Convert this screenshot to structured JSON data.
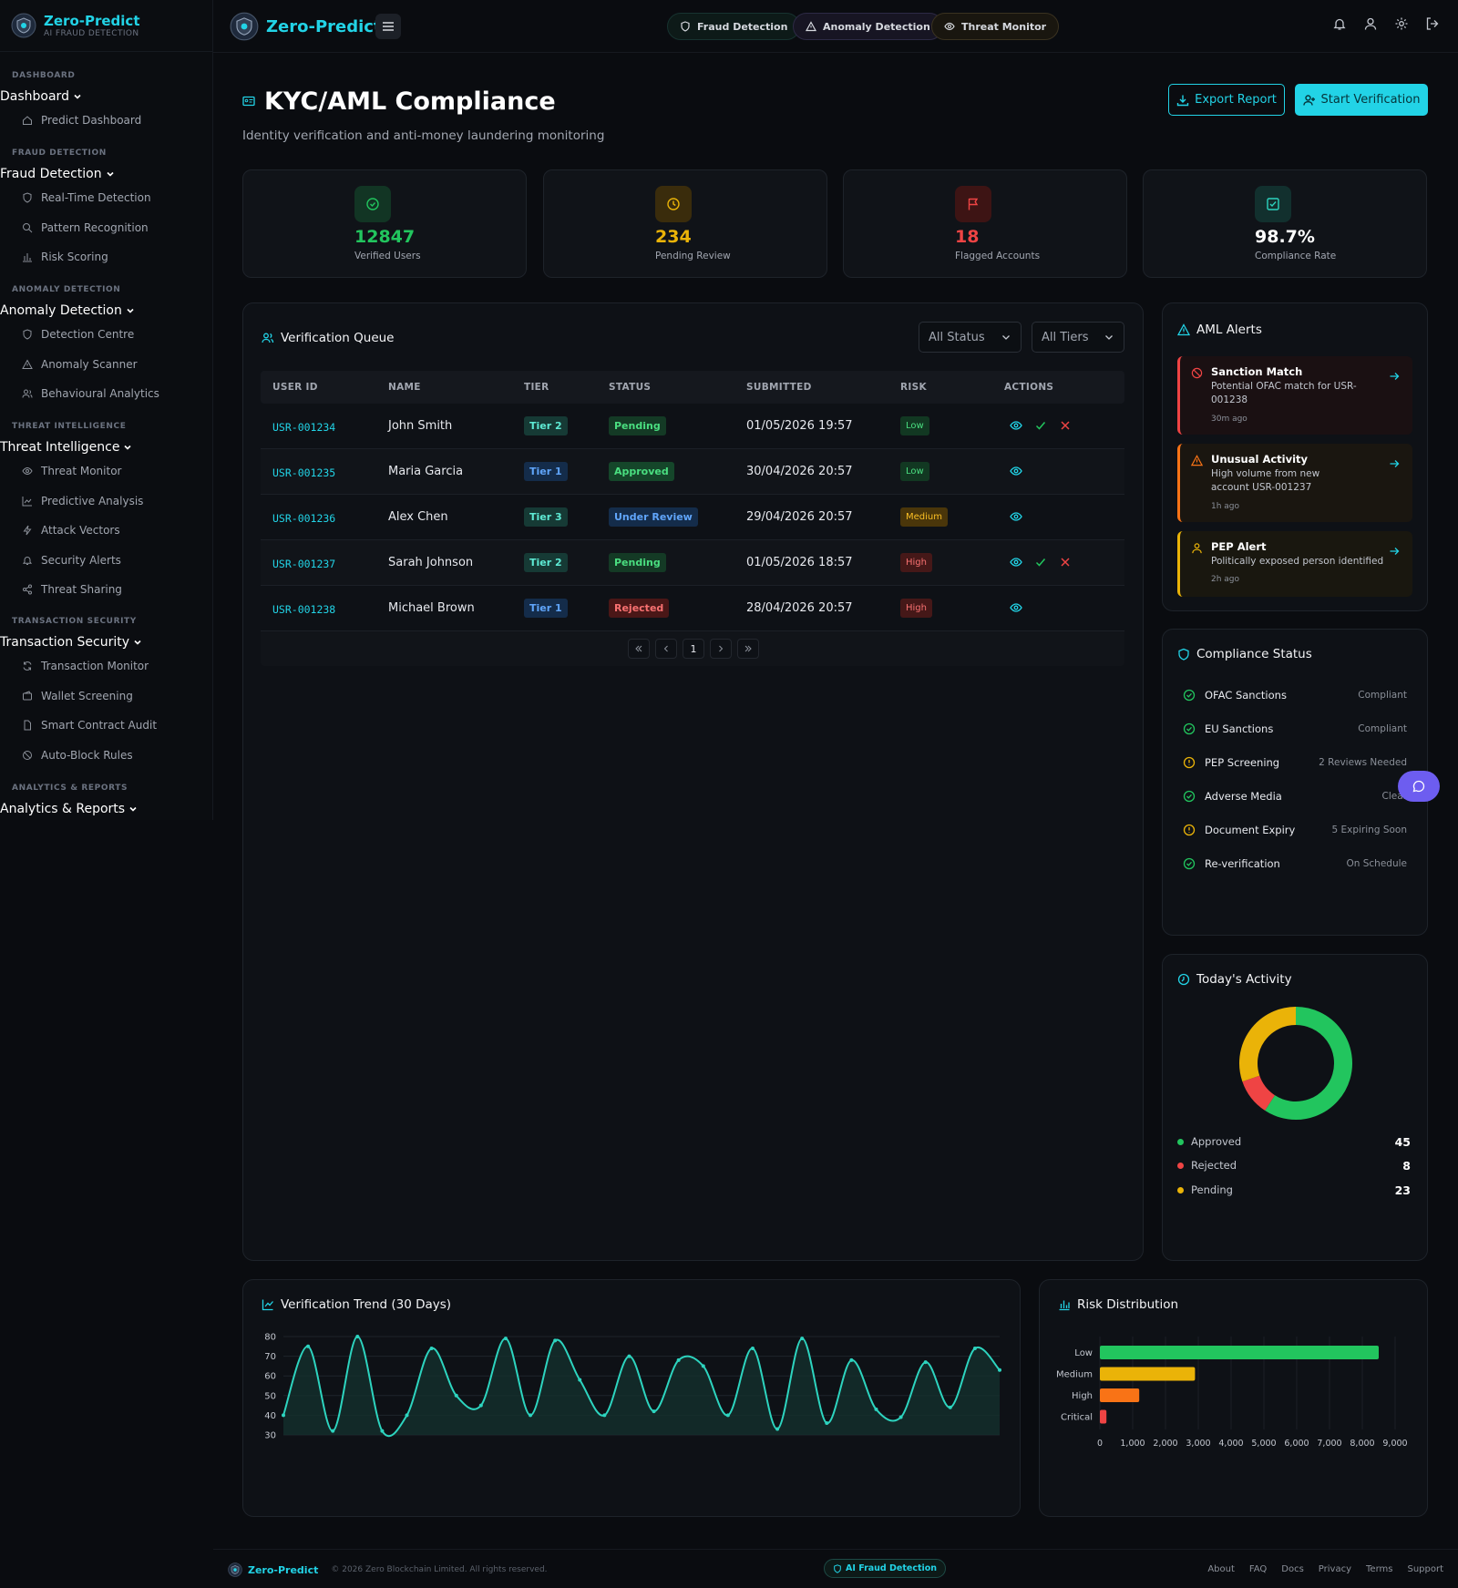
{
  "brand": {
    "name": "Zero-Predict",
    "tagline": "AI FRAUD DETECTION"
  },
  "sidebar": {
    "sections": [
      {
        "category": "DASHBOARD",
        "heading": "Dashboard",
        "items": [
          "Predict Dashboard"
        ]
      },
      {
        "category": "FRAUD DETECTION",
        "heading": "Fraud Detection",
        "items": [
          "Real-Time Detection",
          "Pattern Recognition",
          "Risk Scoring"
        ]
      },
      {
        "category": "ANOMALY DETECTION",
        "heading": "Anomaly Detection",
        "items": [
          "Detection Centre",
          "Anomaly Scanner",
          "Behavioural Analytics"
        ]
      },
      {
        "category": "THREAT INTELLIGENCE",
        "heading": "Threat Intelligence",
        "items": [
          "Threat Monitor",
          "Predictive Analysis",
          "Attack Vectors",
          "Security Alerts",
          "Threat Sharing"
        ]
      },
      {
        "category": "TRANSACTION SECURITY",
        "heading": "Transaction Security",
        "items": [
          "Transaction Monitor",
          "Wallet Screening",
          "Smart Contract Audit",
          "Auto-Block Rules"
        ]
      },
      {
        "category": "ANALYTICS & REPORTS",
        "heading": "Analytics & Reports",
        "items": []
      }
    ]
  },
  "topbar": {
    "pills": [
      "Fraud Detection",
      "Anomaly Detection",
      "Threat Monitor"
    ]
  },
  "page": {
    "title": "KYC/AML Compliance",
    "subtitle": "Identity verification and anti-money laundering monitoring",
    "export_label": "Export Report",
    "start_label": "Start Verification"
  },
  "stats": [
    {
      "value": "12847",
      "label": "Verified Users",
      "color": "#22c55e"
    },
    {
      "value": "234",
      "label": "Pending Review",
      "color": "#eab308"
    },
    {
      "value": "18",
      "label": "Flagged Accounts",
      "color": "#ef4444"
    },
    {
      "value": "98.7%",
      "label": "Compliance Rate",
      "color": "#ffffff"
    }
  ],
  "queue": {
    "title": "Verification Queue",
    "filter_status": "All Status",
    "filter_tier": "All Tiers",
    "columns": [
      "USER ID",
      "NAME",
      "TIER",
      "STATUS",
      "SUBMITTED",
      "RISK",
      "ACTIONS"
    ],
    "rows": [
      {
        "id": "USR-001234",
        "name": "John Smith",
        "tier": "Tier 2",
        "status": "Pending",
        "submitted": "01/05/2026 19:57",
        "risk": "Low"
      },
      {
        "id": "USR-001235",
        "name": "Maria Garcia",
        "tier": "Tier 1",
        "status": "Approved",
        "submitted": "30/04/2026 20:57",
        "risk": "Low"
      },
      {
        "id": "USR-001236",
        "name": "Alex Chen",
        "tier": "Tier 3",
        "status": "Under Review",
        "submitted": "29/04/2026 20:57",
        "risk": "Medium"
      },
      {
        "id": "USR-001237",
        "name": "Sarah Johnson",
        "tier": "Tier 2",
        "status": "Pending",
        "submitted": "01/05/2026 18:57",
        "risk": "High"
      },
      {
        "id": "USR-001238",
        "name": "Michael Brown",
        "tier": "Tier 1",
        "status": "Rejected",
        "submitted": "28/04/2026 20:57",
        "risk": "High"
      }
    ],
    "page": "1"
  },
  "aml": {
    "title": "AML Alerts",
    "alerts": [
      {
        "title": "Sanction Match",
        "desc": "Potential OFAC match for USR-001238",
        "time": "30m ago"
      },
      {
        "title": "Unusual Activity",
        "desc": "High volume from new account USR-001237",
        "time": "1h ago"
      },
      {
        "title": "PEP Alert",
        "desc": "Politically exposed person identified",
        "time": "2h ago"
      }
    ]
  },
  "compliance": {
    "title": "Compliance Status",
    "items": [
      {
        "name": "OFAC Sanctions",
        "status": "Compliant",
        "ok": true
      },
      {
        "name": "EU Sanctions",
        "status": "Compliant",
        "ok": true
      },
      {
        "name": "PEP Screening",
        "status": "2 Reviews Needed",
        "ok": false
      },
      {
        "name": "Adverse Media",
        "status": "Clear",
        "ok": true
      },
      {
        "name": "Document Expiry",
        "status": "5 Expiring Soon",
        "ok": false
      },
      {
        "name": "Re-verification",
        "status": "On Schedule",
        "ok": true
      }
    ]
  },
  "activity": {
    "title": "Today's Activity",
    "items": [
      {
        "label": "Approved",
        "value": "45",
        "color": "#22c55e"
      },
      {
        "label": "Rejected",
        "value": "8",
        "color": "#ef4444"
      },
      {
        "label": "Pending",
        "value": "23",
        "color": "#eab308"
      }
    ]
  },
  "chart_data": [
    {
      "type": "line",
      "title": "Verification Trend (30 Days)",
      "ylim": [
        30,
        80
      ],
      "yticks": [
        30,
        40,
        50,
        60,
        70,
        80
      ],
      "values": [
        40,
        75,
        32,
        80,
        32,
        40,
        74,
        50,
        45,
        79,
        40,
        78,
        58,
        40,
        70,
        42,
        68,
        65,
        40,
        74,
        33,
        79,
        36,
        68,
        43,
        39,
        67,
        44,
        74,
        63
      ],
      "color": "#2dd4bf"
    },
    {
      "type": "bar",
      "orientation": "horizontal",
      "title": "Risk Distribution",
      "categories": [
        "Low",
        "Medium",
        "High",
        "Critical"
      ],
      "values": [
        8500,
        2900,
        1200,
        200
      ],
      "colors": [
        "#22c55e",
        "#eab308",
        "#f97316",
        "#ef4444"
      ],
      "xlim": [
        0,
        9000
      ],
      "xticks": [
        "0",
        "1,000",
        "2,000",
        "3,000",
        "4,000",
        "5,000",
        "6,000",
        "7,000",
        "8,000",
        "9,000"
      ]
    }
  ],
  "footer": {
    "copyright": "© 2026 Zero Blockchain Limited. All rights reserved.",
    "badge": "AI Fraud Detection",
    "links": [
      "About",
      "FAQ",
      "Docs",
      "Privacy",
      "Terms",
      "Support"
    ]
  }
}
